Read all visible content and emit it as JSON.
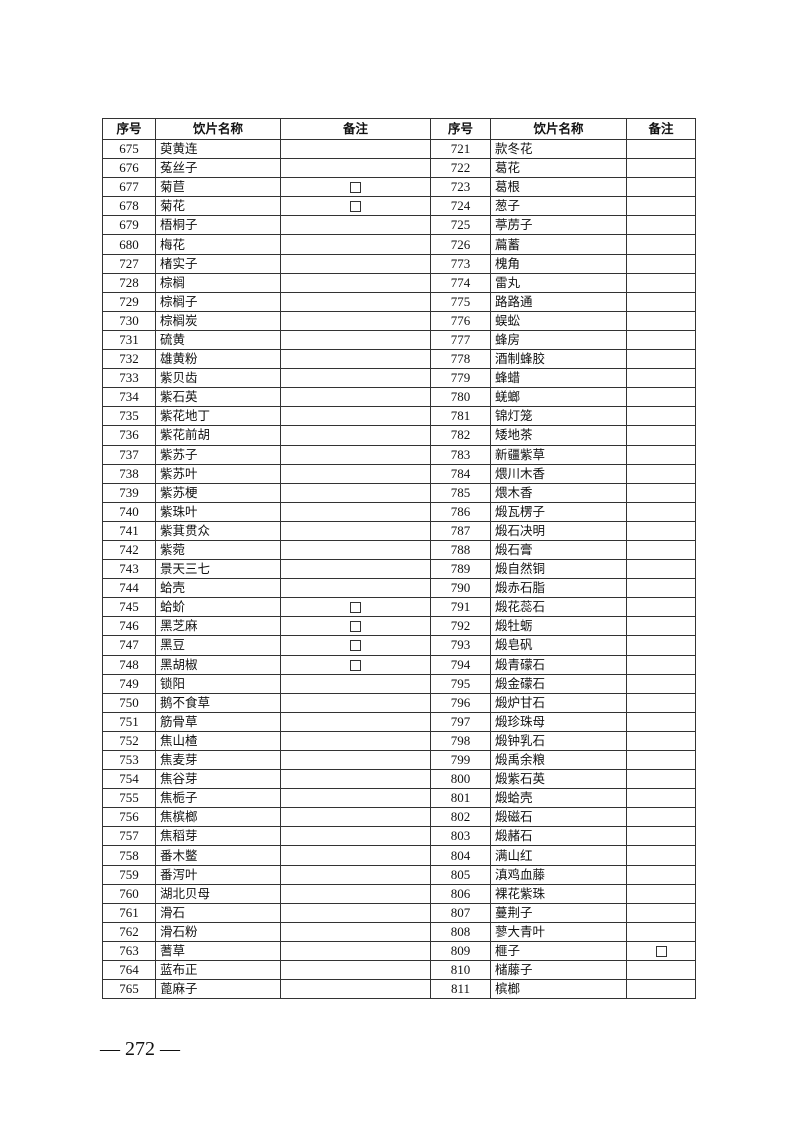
{
  "headers": [
    "序号",
    "饮片名称",
    "备注",
    "序号",
    "饮片名称",
    "备注"
  ],
  "left": [
    [
      "675",
      "萸黄连",
      false
    ],
    [
      "676",
      "菟丝子",
      false
    ],
    [
      "677",
      "菊苣",
      true
    ],
    [
      "678",
      "菊花",
      true
    ],
    [
      "679",
      "梧桐子",
      false
    ],
    [
      "680",
      "梅花",
      false
    ],
    [
      "727",
      "楮实子",
      false
    ],
    [
      "728",
      "棕榈",
      false
    ],
    [
      "729",
      "棕榈子",
      false
    ],
    [
      "730",
      "棕榈炭",
      false
    ],
    [
      "731",
      "硫黄",
      false
    ],
    [
      "732",
      "雄黄粉",
      false
    ],
    [
      "733",
      "紫贝齿",
      false
    ],
    [
      "734",
      "紫石英",
      false
    ],
    [
      "735",
      "紫花地丁",
      false
    ],
    [
      "736",
      "紫花前胡",
      false
    ],
    [
      "737",
      "紫苏子",
      false
    ],
    [
      "738",
      "紫苏叶",
      false
    ],
    [
      "739",
      "紫苏梗",
      false
    ],
    [
      "740",
      "紫珠叶",
      false
    ],
    [
      "741",
      "紫萁贯众",
      false
    ],
    [
      "742",
      "紫菀",
      false
    ],
    [
      "743",
      "景天三七",
      false
    ],
    [
      "744",
      "蛤壳",
      false
    ],
    [
      "745",
      "蛤蚧",
      true
    ],
    [
      "746",
      "黑芝麻",
      true
    ],
    [
      "747",
      "黑豆",
      true
    ],
    [
      "748",
      "黑胡椒",
      true
    ],
    [
      "749",
      "锁阳",
      false
    ],
    [
      "750",
      "鹅不食草",
      false
    ],
    [
      "751",
      "筋骨草",
      false
    ],
    [
      "752",
      "焦山楂",
      false
    ],
    [
      "753",
      "焦麦芽",
      false
    ],
    [
      "754",
      "焦谷芽",
      false
    ],
    [
      "755",
      "焦栀子",
      false
    ],
    [
      "756",
      "焦槟榔",
      false
    ],
    [
      "757",
      "焦稻芽",
      false
    ],
    [
      "758",
      "番木鳖",
      false
    ],
    [
      "759",
      "番泻叶",
      false
    ],
    [
      "760",
      "湖北贝母",
      false
    ],
    [
      "761",
      "滑石",
      false
    ],
    [
      "762",
      "滑石粉",
      false
    ],
    [
      "763",
      "蓍草",
      false
    ],
    [
      "764",
      "蓝布正",
      false
    ],
    [
      "765",
      "蓖麻子",
      false
    ]
  ],
  "right": [
    [
      "721",
      "款冬花",
      false
    ],
    [
      "722",
      "葛花",
      false
    ],
    [
      "723",
      "葛根",
      false
    ],
    [
      "724",
      "葱子",
      false
    ],
    [
      "725",
      "葶苈子",
      false
    ],
    [
      "726",
      "萹蓄",
      false
    ],
    [
      "773",
      "槐角",
      false
    ],
    [
      "774",
      "雷丸",
      false
    ],
    [
      "775",
      "路路通",
      false
    ],
    [
      "776",
      "蜈蚣",
      false
    ],
    [
      "777",
      "蜂房",
      false
    ],
    [
      "778",
      "酒制蜂胶",
      false
    ],
    [
      "779",
      "蜂蜡",
      false
    ],
    [
      "780",
      "蜣螂",
      false
    ],
    [
      "781",
      "锦灯笼",
      false
    ],
    [
      "782",
      "矮地茶",
      false
    ],
    [
      "783",
      "新疆紫草",
      false
    ],
    [
      "784",
      "煨川木香",
      false
    ],
    [
      "785",
      "煨木香",
      false
    ],
    [
      "786",
      "煅瓦楞子",
      false
    ],
    [
      "787",
      "煅石决明",
      false
    ],
    [
      "788",
      "煅石膏",
      false
    ],
    [
      "789",
      "煅自然铜",
      false
    ],
    [
      "790",
      "煅赤石脂",
      false
    ],
    [
      "791",
      "煅花蕊石",
      false
    ],
    [
      "792",
      "煅牡蛎",
      false
    ],
    [
      "793",
      "煅皂矾",
      false
    ],
    [
      "794",
      "煅青礞石",
      false
    ],
    [
      "795",
      "煅金礞石",
      false
    ],
    [
      "796",
      "煅炉甘石",
      false
    ],
    [
      "797",
      "煅珍珠母",
      false
    ],
    [
      "798",
      "煅钟乳石",
      false
    ],
    [
      "799",
      "煅禹余粮",
      false
    ],
    [
      "800",
      "煅紫石英",
      false
    ],
    [
      "801",
      "煅蛤壳",
      false
    ],
    [
      "802",
      "煅磁石",
      false
    ],
    [
      "803",
      "煅赭石",
      false
    ],
    [
      "804",
      "满山红",
      false
    ],
    [
      "805",
      "滇鸡血藤",
      false
    ],
    [
      "806",
      "裸花紫珠",
      false
    ],
    [
      "807",
      "蔓荆子",
      false
    ],
    [
      "808",
      "蓼大青叶",
      false
    ],
    [
      "809",
      "榧子",
      true
    ],
    [
      "810",
      "槠藤子",
      false
    ],
    [
      "811",
      "槟榔",
      false
    ]
  ],
  "page_number": "— 272 —"
}
